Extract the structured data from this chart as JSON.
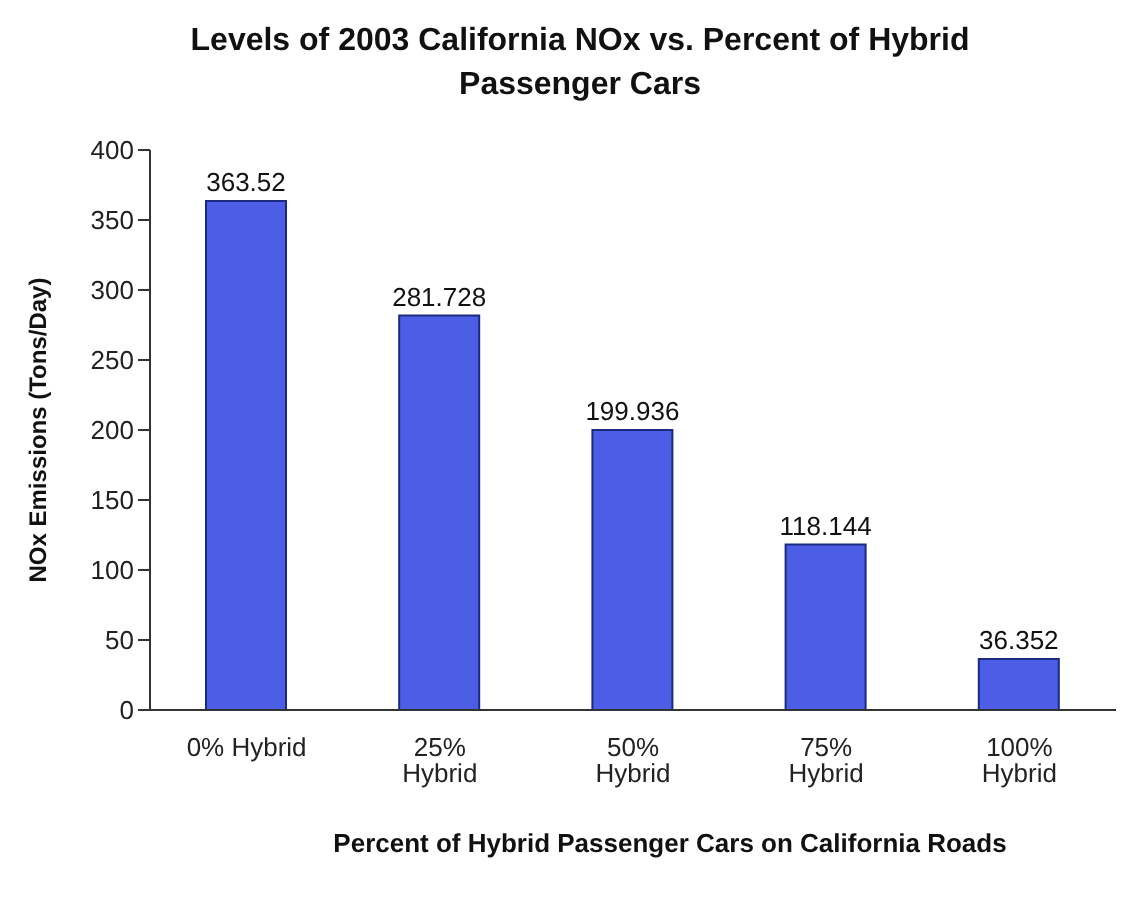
{
  "chart_data": {
    "type": "bar",
    "title": "Levels of 2003 California NOx vs. Percent of Hybrid Passenger Cars",
    "xlabel": "Percent of Hybrid Passenger Cars on California Roads",
    "ylabel": "NOx Emissions (Tons/Day)",
    "categories": [
      "0% Hybrid",
      "25% Hybrid",
      "50% Hybrid",
      "75% Hybrid",
      "100% Hybrid"
    ],
    "values": [
      363.52,
      281.728,
      199.936,
      118.144,
      36.352
    ],
    "color": "#4c5ee6",
    "ylim": [
      0,
      400
    ],
    "yticks": [
      0,
      50,
      100,
      150,
      200,
      250,
      300,
      350,
      400
    ],
    "grid": false,
    "data_labels": true
  }
}
